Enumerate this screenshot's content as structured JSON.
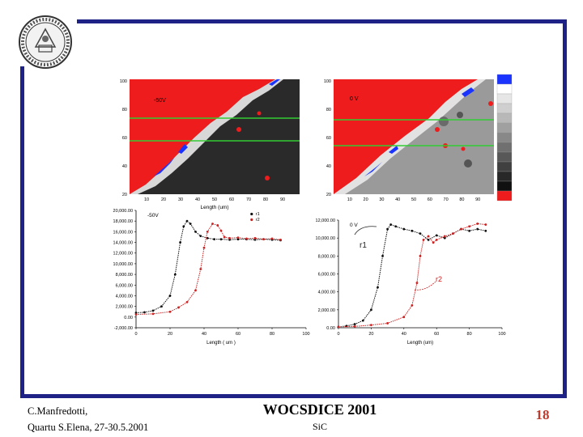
{
  "colors": {
    "frame": "#1e2286",
    "accent": "#c0392b",
    "map_red": "#ee1c1c",
    "map_blue": "#1a33ff",
    "line_green": "#33cc33"
  },
  "maps": {
    "left": {
      "label": "-50V",
      "x_ticks": [
        "10",
        "20",
        "30",
        "40",
        "50",
        "60",
        "70",
        "80",
        "90"
      ],
      "y_ticks": [
        "100",
        "80",
        "60",
        "40",
        "20"
      ]
    },
    "right": {
      "label": "0 V",
      "x_ticks": [
        "10",
        "20",
        "30",
        "40",
        "50",
        "60",
        "70",
        "80",
        "90"
      ],
      "y_ticks": [
        "100",
        "80",
        "60",
        "40",
        "20"
      ]
    },
    "x_label": "Length (um)"
  },
  "chart_data": [
    {
      "type": "line",
      "label": "-50V",
      "xlabel": "Length ( um )",
      "x_ticks": [
        0,
        20,
        40,
        60,
        80,
        100
      ],
      "y_ticks": [
        20000,
        18000,
        16000,
        14000,
        12000,
        10000,
        8000,
        6000,
        4000,
        2000,
        0,
        -2000
      ],
      "ylim": [
        -2000,
        20000
      ],
      "xlim": [
        0,
        100
      ],
      "series": [
        {
          "name": "r1",
          "color": "#111111",
          "x": [
            0,
            5,
            10,
            15,
            20,
            23,
            26,
            28,
            30,
            32,
            35,
            38,
            42,
            46,
            50,
            55,
            60,
            65,
            70,
            75,
            80,
            85
          ],
          "y": [
            800,
            900,
            1200,
            2000,
            4000,
            8000,
            14000,
            17000,
            18000,
            17500,
            16000,
            15200,
            14800,
            14600,
            14600,
            14500,
            14600,
            14600,
            14500,
            14600,
            14500,
            14400
          ]
        },
        {
          "name": "r2",
          "color": "#cc2222",
          "x": [
            0,
            10,
            20,
            25,
            30,
            35,
            38,
            40,
            42,
            45,
            48,
            50,
            52,
            55,
            60,
            65,
            70,
            75,
            80,
            85
          ],
          "y": [
            500,
            600,
            1000,
            1800,
            2800,
            5000,
            9000,
            13000,
            16000,
            17500,
            17200,
            16200,
            15000,
            14800,
            14900,
            14700,
            14800,
            14600,
            14700,
            14500
          ]
        }
      ]
    },
    {
      "type": "line",
      "label": "0 V",
      "xlabel": "Length (um)",
      "x_ticks": [
        0,
        20,
        40,
        60,
        80,
        100
      ],
      "y_ticks": [
        12000,
        10000,
        8000,
        6000,
        4000,
        2000,
        0
      ],
      "ylim": [
        0,
        12000
      ],
      "xlim": [
        0,
        100
      ],
      "series": [
        {
          "name": "r1",
          "color": "#111111",
          "x": [
            0,
            5,
            10,
            15,
            20,
            24,
            27,
            30,
            32,
            35,
            40,
            45,
            50,
            55,
            60,
            65,
            70,
            75,
            80,
            85,
            90
          ],
          "y": [
            100,
            200,
            400,
            800,
            2000,
            4500,
            8000,
            11000,
            11500,
            11300,
            11000,
            10800,
            10500,
            9800,
            10300,
            10000,
            10500,
            11000,
            10800,
            11000,
            10800
          ]
        },
        {
          "name": "r2",
          "color": "#cc2222",
          "x": [
            0,
            10,
            20,
            30,
            40,
            45,
            48,
            50,
            52,
            55,
            58,
            60,
            65,
            70,
            75,
            80,
            85,
            90
          ],
          "y": [
            100,
            150,
            300,
            500,
            1200,
            2500,
            5000,
            8000,
            9800,
            10200,
            9500,
            9800,
            10200,
            10500,
            11000,
            11300,
            11600,
            11500
          ]
        }
      ]
    }
  ],
  "annotations": {
    "r1": "r1",
    "r2": "r2"
  },
  "footer": {
    "author": "C.Manfredotti,",
    "place": "Quartu S.Elena, 27-30.5.2001",
    "title": "WOCSDICE 2001",
    "subtitle": "SiC",
    "page": "18"
  }
}
